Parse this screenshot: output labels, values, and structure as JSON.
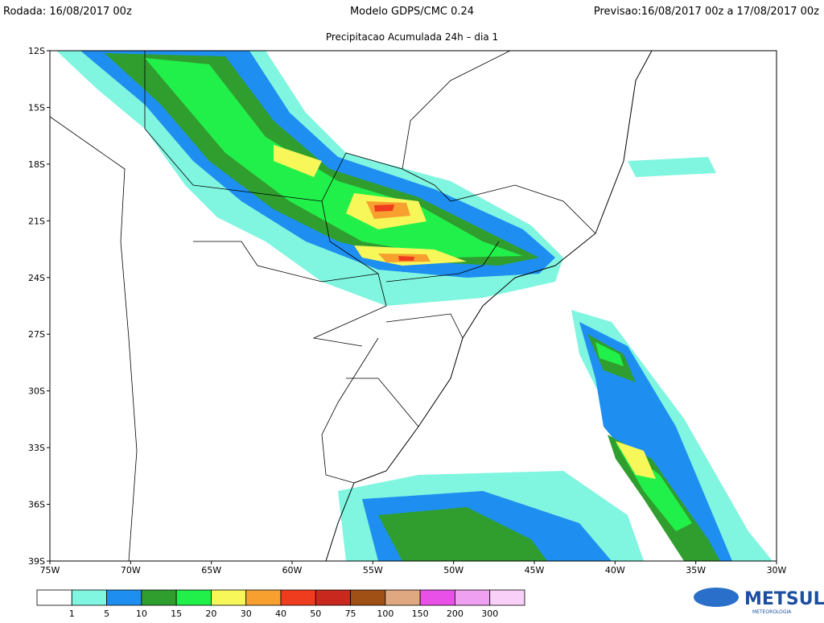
{
  "header": {
    "left": "Rodada: 16/08/2017 00z",
    "center": "Modelo GDPS/CMC 0.24",
    "right": "Previsao:16/08/2017 00z a 17/08/2017 00z"
  },
  "subtitle": "Precipitacao Acumulada 24h – dia 1",
  "map": {
    "lat_labels": [
      "12S",
      "15S",
      "18S",
      "21S",
      "24S",
      "27S",
      "30S",
      "33S",
      "36S",
      "39S"
    ],
    "lon_labels": [
      "75W",
      "70W",
      "65W",
      "60W",
      "55W",
      "50W",
      "45W",
      "40W",
      "35W",
      "30W"
    ]
  },
  "colorbar": {
    "colors": [
      "#ffffff",
      "#80f5e0",
      "#1e8ff0",
      "#2f9e2f",
      "#22f04a",
      "#f7f75a",
      "#f7a030",
      "#f03c1e",
      "#c8281e",
      "#a05014",
      "#e0a880",
      "#e850e8",
      "#f0a0f0",
      "#f8d0f8"
    ],
    "labels": [
      "1",
      "5",
      "10",
      "15",
      "20",
      "30",
      "40",
      "50",
      "75",
      "100",
      "150",
      "200",
      "300"
    ]
  },
  "logo": {
    "name": "METSUL",
    "tagline": "METEOROLOGIA"
  }
}
